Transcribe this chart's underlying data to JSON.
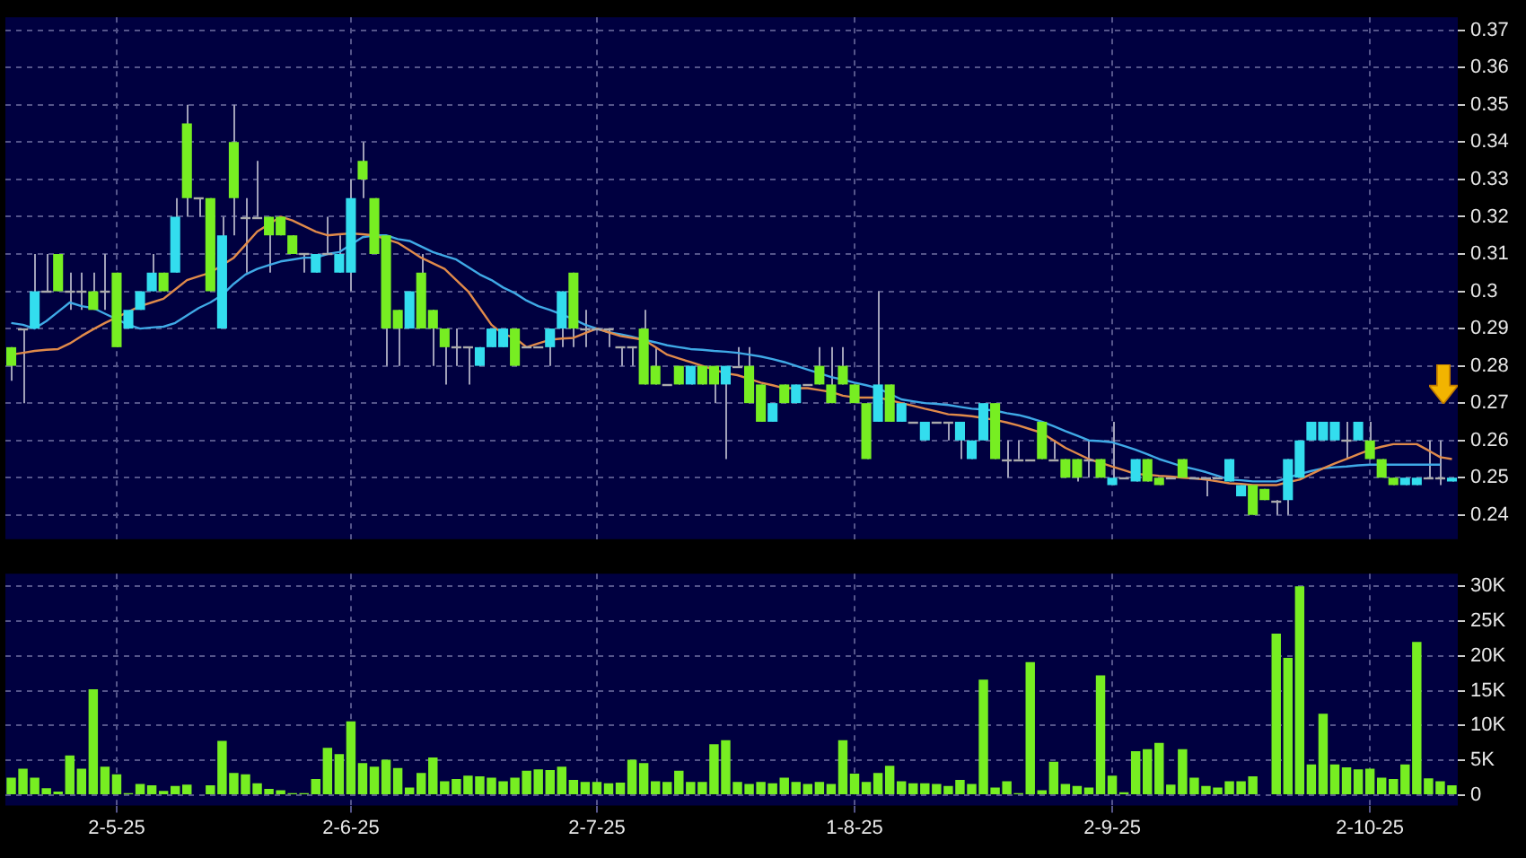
{
  "chart_data": [
    {
      "type": "candlestick",
      "tick_labels": "y",
      "grid": true,
      "categories": [
        null,
        null,
        null,
        null,
        null,
        null,
        null,
        null,
        null,
        null,
        null,
        null,
        null,
        null,
        null,
        null,
        null,
        null,
        null,
        null,
        null,
        null,
        null,
        null,
        null,
        null,
        null,
        null,
        null,
        null,
        null,
        null,
        null,
        null,
        null,
        null,
        null,
        null,
        null,
        null,
        null,
        null,
        null,
        null,
        null,
        null,
        null,
        null,
        null,
        null,
        null,
        null,
        null,
        null,
        null,
        null,
        null,
        null,
        null,
        null,
        null,
        null,
        null,
        null,
        null,
        null,
        null,
        null,
        null,
        null,
        null,
        null,
        null,
        null,
        null,
        null,
        null,
        null,
        null,
        null,
        null,
        null,
        null,
        null,
        null,
        null,
        null,
        null,
        null,
        null,
        null,
        null,
        null,
        null,
        null,
        null,
        null,
        null,
        null,
        null,
        null,
        null,
        null,
        null,
        null,
        null,
        null,
        null,
        null,
        null,
        null,
        null,
        null,
        null,
        null,
        null,
        null,
        null,
        null,
        null,
        null,
        null,
        null,
        null
      ],
      "ohlc": [
        [
          0.285,
          0.285,
          0.276,
          0.28
        ],
        [
          0.29,
          0.29,
          0.27,
          0.29
        ],
        [
          0.29,
          0.31,
          0.29,
          0.3
        ],
        [
          0.3,
          0.31,
          0.3,
          0.3
        ],
        [
          0.31,
          0.31,
          0.3,
          0.3
        ],
        [
          0.3,
          0.305,
          0.295,
          0.3
        ],
        [
          0.3,
          0.305,
          0.295,
          0.3
        ],
        [
          0.3,
          0.305,
          0.295,
          0.295
        ],
        [
          0.3,
          0.31,
          0.295,
          0.3
        ],
        [
          0.305,
          0.305,
          0.285,
          0.285
        ],
        [
          0.29,
          0.295,
          0.29,
          0.295
        ],
        [
          0.295,
          0.3,
          0.295,
          0.3
        ],
        [
          0.3,
          0.31,
          0.3,
          0.305
        ],
        [
          0.305,
          0.305,
          0.3,
          0.3
        ],
        [
          0.305,
          0.325,
          0.305,
          0.32
        ],
        [
          0.345,
          0.35,
          0.32,
          0.325
        ],
        [
          0.325,
          0.325,
          0.32,
          0.325
        ],
        [
          0.325,
          0.325,
          0.3,
          0.3
        ],
        [
          0.29,
          0.32,
          0.29,
          0.315
        ],
        [
          0.34,
          0.35,
          0.315,
          0.325
        ],
        [
          0.32,
          0.325,
          0.305,
          0.32
        ],
        [
          0.32,
          0.335,
          0.32,
          0.32
        ],
        [
          0.32,
          0.32,
          0.305,
          0.315
        ],
        [
          0.32,
          0.32,
          0.315,
          0.315
        ],
        [
          0.315,
          0.315,
          0.31,
          0.31
        ],
        [
          0.31,
          0.31,
          0.305,
          0.31
        ],
        [
          0.305,
          0.31,
          0.305,
          0.31
        ],
        [
          0.31,
          0.32,
          0.31,
          0.31
        ],
        [
          0.305,
          0.315,
          0.305,
          0.31
        ],
        [
          0.305,
          0.33,
          0.3,
          0.325
        ],
        [
          0.335,
          0.34,
          0.325,
          0.33
        ],
        [
          0.325,
          0.325,
          0.31,
          0.31
        ],
        [
          0.315,
          0.315,
          0.28,
          0.29
        ],
        [
          0.295,
          0.295,
          0.28,
          0.29
        ],
        [
          0.29,
          0.3,
          0.29,
          0.3
        ],
        [
          0.305,
          0.31,
          0.29,
          0.29
        ],
        [
          0.295,
          0.295,
          0.28,
          0.29
        ],
        [
          0.29,
          0.29,
          0.275,
          0.285
        ],
        [
          0.285,
          0.29,
          0.28,
          0.285
        ],
        [
          0.285,
          0.285,
          0.275,
          0.285
        ],
        [
          0.28,
          0.285,
          0.28,
          0.285
        ],
        [
          0.285,
          0.29,
          0.285,
          0.29
        ],
        [
          0.285,
          0.29,
          0.285,
          0.29
        ],
        [
          0.29,
          0.29,
          0.28,
          0.28
        ],
        [
          0.285,
          0.285,
          0.285,
          0.285
        ],
        [
          0.285,
          0.285,
          0.285,
          0.285
        ],
        [
          0.285,
          0.29,
          0.28,
          0.29
        ],
        [
          0.29,
          0.3,
          0.285,
          0.3
        ],
        [
          0.305,
          0.305,
          0.285,
          0.29
        ],
        [
          0.29,
          0.295,
          0.285,
          0.29
        ],
        [
          0.29,
          0.29,
          0.29,
          0.29
        ],
        [
          0.29,
          0.29,
          0.285,
          0.29
        ],
        [
          0.285,
          0.285,
          0.28,
          0.285
        ],
        [
          0.285,
          0.285,
          0.28,
          0.285
        ],
        [
          0.29,
          0.295,
          0.275,
          0.275
        ],
        [
          0.28,
          0.285,
          0.275,
          0.275
        ],
        [
          0.275,
          0.275,
          0.275,
          0.275
        ],
        [
          0.28,
          0.28,
          0.275,
          0.275
        ],
        [
          0.275,
          0.28,
          0.275,
          0.28
        ],
        [
          0.28,
          0.28,
          0.275,
          0.275
        ],
        [
          0.28,
          0.28,
          0.27,
          0.275
        ],
        [
          0.275,
          0.28,
          0.255,
          0.28
        ],
        [
          0.28,
          0.285,
          0.28,
          0.28
        ],
        [
          0.28,
          0.285,
          0.27,
          0.27
        ],
        [
          0.275,
          0.275,
          0.265,
          0.265
        ],
        [
          0.265,
          0.27,
          0.265,
          0.27
        ],
        [
          0.275,
          0.275,
          0.27,
          0.27
        ],
        [
          0.27,
          0.275,
          0.27,
          0.275
        ],
        [
          0.275,
          0.275,
          0.275,
          0.275
        ],
        [
          0.28,
          0.285,
          0.275,
          0.275
        ],
        [
          0.275,
          0.285,
          0.27,
          0.27
        ],
        [
          0.28,
          0.285,
          0.275,
          0.275
        ],
        [
          0.275,
          0.275,
          0.27,
          0.27
        ],
        [
          0.27,
          0.27,
          0.255,
          0.255
        ],
        [
          0.265,
          0.3,
          0.265,
          0.275
        ],
        [
          0.275,
          0.275,
          0.265,
          0.265
        ],
        [
          0.265,
          0.27,
          0.265,
          0.27
        ],
        [
          0.265,
          0.265,
          0.265,
          0.265
        ],
        [
          0.26,
          0.265,
          0.26,
          0.265
        ],
        [
          0.265,
          0.265,
          0.265,
          0.265
        ],
        [
          0.265,
          0.265,
          0.26,
          0.265
        ],
        [
          0.26,
          0.265,
          0.255,
          0.265
        ],
        [
          0.255,
          0.26,
          0.255,
          0.26
        ],
        [
          0.26,
          0.27,
          0.26,
          0.27
        ],
        [
          0.27,
          0.27,
          0.255,
          0.255
        ],
        [
          0.255,
          0.26,
          0.25,
          0.255
        ],
        [
          0.255,
          0.26,
          0.255,
          0.255
        ],
        [
          0.255,
          0.255,
          0.255,
          0.255
        ],
        [
          0.265,
          0.265,
          0.255,
          0.255
        ],
        [
          0.255,
          0.26,
          0.255,
          0.255
        ],
        [
          0.255,
          0.255,
          0.25,
          0.25
        ],
        [
          0.255,
          0.255,
          0.249,
          0.25
        ],
        [
          0.255,
          0.26,
          0.25,
          0.255
        ],
        [
          0.255,
          0.255,
          0.25,
          0.25
        ],
        [
          0.248,
          0.265,
          0.248,
          0.25
        ],
        [
          0.25,
          0.25,
          0.25,
          0.25
        ],
        [
          0.249,
          0.255,
          0.249,
          0.255
        ],
        [
          0.255,
          0.255,
          0.249,
          0.249
        ],
        [
          0.25,
          0.25,
          0.248,
          0.248
        ],
        [
          0.25,
          0.25,
          0.25,
          0.25
        ],
        [
          0.255,
          0.255,
          0.25,
          0.25
        ],
        [
          0.25,
          0.25,
          0.25,
          0.25
        ],
        [
          0.25,
          0.25,
          0.245,
          0.25
        ],
        [
          0.25,
          0.25,
          0.25,
          0.25
        ],
        [
          0.249,
          0.255,
          0.249,
          0.255
        ],
        [
          0.245,
          0.248,
          0.245,
          0.248
        ],
        [
          0.248,
          0.248,
          0.24,
          0.24
        ],
        [
          0.247,
          0.247,
          0.244,
          0.244
        ],
        [
          0.244,
          0.244,
          0.24,
          0.244
        ],
        [
          0.244,
          0.255,
          0.24,
          0.255
        ],
        [
          0.25,
          0.26,
          0.25,
          0.26
        ],
        [
          0.26,
          0.265,
          0.26,
          0.265
        ],
        [
          0.26,
          0.265,
          0.26,
          0.265
        ],
        [
          0.26,
          0.265,
          0.26,
          0.265
        ],
        [
          0.26,
          0.265,
          0.255,
          0.26
        ],
        [
          0.26,
          0.265,
          0.26,
          0.265
        ],
        [
          0.26,
          0.265,
          0.255,
          0.255
        ],
        [
          0.255,
          0.255,
          0.25,
          0.25
        ],
        [
          0.25,
          0.25,
          0.248,
          0.248
        ],
        [
          0.248,
          0.25,
          0.248,
          0.25
        ],
        [
          0.248,
          0.25,
          0.248,
          0.25
        ],
        [
          0.25,
          0.26,
          0.25,
          0.25
        ],
        [
          0.25,
          0.26,
          0.248,
          0.25
        ],
        [
          0.249,
          0.25,
          0.249,
          0.25
        ]
      ],
      "colors": [
        "#77ee22",
        "#aaaaaa",
        "#33ddee",
        "#aaaaaa",
        "#77ee22",
        "#aaaaaa",
        "#aaaaaa",
        "#77ee22",
        "#aaaaaa",
        "#77ee22",
        "#33ddee",
        "#33ddee",
        "#33ddee",
        "#77ee22",
        "#33ddee",
        "#77ee22",
        "#aaaaaa",
        "#77ee22",
        "#33ddee",
        "#77ee22",
        "#aaaaaa",
        "#aaaaaa",
        "#77ee22",
        "#77ee22",
        "#77ee22",
        "#aaaaaa",
        "#33ddee",
        "#aaaaaa",
        "#33ddee",
        "#33ddee",
        "#77ee22",
        "#77ee22",
        "#77ee22",
        "#77ee22",
        "#33ddee",
        "#77ee22",
        "#77ee22",
        "#77ee22",
        "#aaaaaa",
        "#aaaaaa",
        "#33ddee",
        "#33ddee",
        "#33ddee",
        "#77ee22",
        "#aaaaaa",
        "#aaaaaa",
        "#33ddee",
        "#33ddee",
        "#77ee22",
        "#aaaaaa",
        "#aaaaaa",
        "#aaaaaa",
        "#aaaaaa",
        "#aaaaaa",
        "#77ee22",
        "#77ee22",
        "#aaaaaa",
        "#77ee22",
        "#33ddee",
        "#77ee22",
        "#77ee22",
        "#33ddee",
        "#aaaaaa",
        "#77ee22",
        "#77ee22",
        "#33ddee",
        "#77ee22",
        "#33ddee",
        "#aaaaaa",
        "#77ee22",
        "#77ee22",
        "#77ee22",
        "#77ee22",
        "#77ee22",
        "#33ddee",
        "#77ee22",
        "#33ddee",
        "#aaaaaa",
        "#33ddee",
        "#aaaaaa",
        "#aaaaaa",
        "#33ddee",
        "#33ddee",
        "#33ddee",
        "#77ee22",
        "#aaaaaa",
        "#aaaaaa",
        "#aaaaaa",
        "#77ee22",
        "#aaaaaa",
        "#77ee22",
        "#77ee22",
        "#aaaaaa",
        "#77ee22",
        "#33ddee",
        "#aaaaaa",
        "#33ddee",
        "#77ee22",
        "#77ee22",
        "#aaaaaa",
        "#77ee22",
        "#aaaaaa",
        "#aaaaaa",
        "#aaaaaa",
        "#33ddee",
        "#33ddee",
        "#77ee22",
        "#77ee22",
        "#aaaaaa",
        "#33ddee",
        "#33ddee",
        "#33ddee",
        "#33ddee",
        "#33ddee",
        "#aaaaaa",
        "#33ddee",
        "#77ee22",
        "#77ee22",
        "#77ee22",
        "#33ddee",
        "#33ddee",
        "#aaaaaa",
        "#aaaaaa",
        "#33ddee"
      ],
      "series": [
        {
          "type": "line",
          "color": "#e08a4a",
          "values": [
            0.283,
            0.2835,
            0.284,
            0.2843,
            0.2845,
            0.286,
            0.288,
            0.2898,
            0.2915,
            0.293,
            0.2945,
            0.296,
            0.297,
            0.298,
            0.3005,
            0.303,
            0.304,
            0.305,
            0.307,
            0.309,
            0.3125,
            0.316,
            0.318,
            0.32,
            0.319,
            0.3175,
            0.316,
            0.315,
            0.3153,
            0.3155,
            0.3153,
            0.315,
            0.314,
            0.313,
            0.311,
            0.309,
            0.3075,
            0.306,
            0.303,
            0.3,
            0.2955,
            0.291,
            0.2885,
            0.2875,
            0.285,
            0.286,
            0.287,
            0.2873,
            0.2875,
            0.2888,
            0.29,
            0.289,
            0.288,
            0.2875,
            0.287,
            0.285,
            0.283,
            0.282,
            0.281,
            0.28,
            0.279,
            0.278,
            0.2775,
            0.2765,
            0.2755,
            0.2748,
            0.274,
            0.274,
            0.274,
            0.2735,
            0.273,
            0.272,
            0.2715,
            0.2715,
            0.2715,
            0.2708,
            0.27,
            0.2693,
            0.2685,
            0.2678,
            0.267,
            0.2668,
            0.2665,
            0.266,
            0.2655,
            0.2648,
            0.264,
            0.263,
            0.262,
            0.26,
            0.258,
            0.2565,
            0.255,
            0.254,
            0.253,
            0.252,
            0.251,
            0.2508,
            0.2505,
            0.2503,
            0.25,
            0.2498,
            0.2495,
            0.249,
            0.2485,
            0.2483,
            0.248,
            0.248,
            0.248,
            0.2488,
            0.2495,
            0.251,
            0.2525,
            0.2538,
            0.255,
            0.2563,
            0.2575,
            0.2583,
            0.259,
            0.259,
            0.259,
            0.2573,
            0.2555,
            0.255
          ]
        },
        {
          "type": "line",
          "color": "#3fa9e6",
          "values": [
            0.2915,
            0.291,
            0.29,
            0.292,
            0.2945,
            0.297,
            0.296,
            0.2955,
            0.294,
            0.2925,
            0.291,
            0.29,
            0.2903,
            0.2905,
            0.2915,
            0.2935,
            0.2955,
            0.297,
            0.299,
            0.302,
            0.3045,
            0.306,
            0.307,
            0.308,
            0.3085,
            0.309,
            0.309,
            0.31,
            0.3105,
            0.3125,
            0.3145,
            0.315,
            0.315,
            0.314,
            0.3135,
            0.312,
            0.3105,
            0.3095,
            0.3085,
            0.3065,
            0.3045,
            0.303,
            0.301,
            0.2995,
            0.2975,
            0.296,
            0.295,
            0.2938,
            0.2925,
            0.291,
            0.29,
            0.289,
            0.2885,
            0.2878,
            0.287,
            0.2863,
            0.2855,
            0.285,
            0.2845,
            0.2843,
            0.284,
            0.2838,
            0.2835,
            0.283,
            0.2825,
            0.2818,
            0.281,
            0.28,
            0.279,
            0.278,
            0.277,
            0.2763,
            0.2755,
            0.2748,
            0.274,
            0.2725,
            0.271,
            0.2705,
            0.27,
            0.2698,
            0.2695,
            0.269,
            0.2685,
            0.2683,
            0.268,
            0.2673,
            0.2668,
            0.266,
            0.265,
            0.2638,
            0.2625,
            0.2613,
            0.26,
            0.2598,
            0.2595,
            0.2585,
            0.2575,
            0.2563,
            0.255,
            0.254,
            0.253,
            0.2523,
            0.2515,
            0.2505,
            0.2495,
            0.2493,
            0.249,
            0.249,
            0.249,
            0.25,
            0.251,
            0.2518,
            0.2525,
            0.2528,
            0.253,
            0.2533,
            0.2535,
            0.2535,
            0.2535,
            0.2535,
            0.2535,
            0.2535,
            0.2535,
            null
          ]
        }
      ],
      "ylim": [
        0.2335,
        0.3735
      ],
      "yticks": [
        0.24,
        0.25,
        0.26,
        0.27,
        0.28,
        0.29,
        0.3,
        0.31,
        0.32,
        0.33,
        0.34,
        0.35,
        0.36,
        0.37
      ]
    },
    {
      "type": "bar",
      "grid": true,
      "color": "#77ee22",
      "categories": [
        null,
        null,
        null,
        null,
        null,
        null,
        null,
        null,
        null,
        "2-5-25",
        null,
        null,
        null,
        null,
        null,
        null,
        null,
        null,
        null,
        null,
        null,
        null,
        null,
        null,
        null,
        null,
        null,
        null,
        null,
        "2-6-25",
        null,
        null,
        null,
        null,
        null,
        null,
        null,
        null,
        null,
        null,
        null,
        null,
        null,
        null,
        null,
        null,
        null,
        null,
        null,
        null,
        "2-7-25",
        null,
        null,
        null,
        null,
        null,
        null,
        null,
        null,
        null,
        null,
        null,
        null,
        null,
        null,
        null,
        null,
        null,
        null,
        null,
        null,
        null,
        "1-8-25",
        null,
        null,
        null,
        null,
        null,
        null,
        null,
        null,
        null,
        null,
        null,
        null,
        null,
        null,
        null,
        null,
        null,
        null,
        null,
        null,
        null,
        "2-9-25",
        null,
        null,
        null,
        null,
        null,
        null,
        null,
        null,
        null,
        null,
        null,
        null,
        null,
        null,
        null,
        null,
        null,
        null,
        null,
        null,
        null,
        "2-10-25",
        null,
        null,
        null,
        null,
        null,
        null,
        null
      ],
      "values": [
        2500,
        3800,
        2500,
        1000,
        500,
        5700,
        3800,
        15200,
        4100,
        3000,
        300,
        1600,
        1400,
        600,
        1300,
        1500,
        0,
        1400,
        7800,
        3200,
        3000,
        1700,
        900,
        700,
        300,
        300,
        2300,
        6800,
        5900,
        10600,
        4600,
        4100,
        5100,
        3900,
        1100,
        3200,
        5400,
        2000,
        2300,
        2800,
        2700,
        2500,
        2000,
        2500,
        3500,
        3700,
        3600,
        4100,
        2200,
        1900,
        1900,
        1700,
        1800,
        5100,
        4600,
        2000,
        1900,
        3500,
        1900,
        1900,
        7300,
        7900,
        1900,
        1600,
        1900,
        1700,
        2500,
        1900,
        1600,
        1900,
        1600,
        7900,
        3100,
        1900,
        3200,
        4200,
        2000,
        1700,
        1700,
        1600,
        1300,
        2200,
        1600,
        16600,
        1100,
        2000,
        300,
        19100,
        700,
        4800,
        1600,
        1300,
        1100,
        17200,
        2800,
        400,
        6300,
        6600,
        7500,
        1500,
        6600,
        2500,
        1300,
        1100,
        2000,
        2000,
        2700,
        0,
        23200,
        19700,
        30000,
        4400,
        11700,
        4400,
        4000,
        3700,
        3800,
        2500,
        2300,
        4400,
        22000,
        2400,
        2000,
        1400
      ],
      "ylim": [
        -1500,
        31800
      ],
      "yticks": [
        0,
        {
          "value": 5000,
          "label": "5K"
        },
        {
          "value": 10000,
          "label": "10K"
        },
        {
          "value": 15000,
          "label": "15K"
        },
        {
          "value": 20000,
          "label": "20K"
        },
        {
          "value": 25000,
          "label": "25K"
        },
        {
          "value": 30000,
          "label": "30K"
        }
      ]
    }
  ]
}
